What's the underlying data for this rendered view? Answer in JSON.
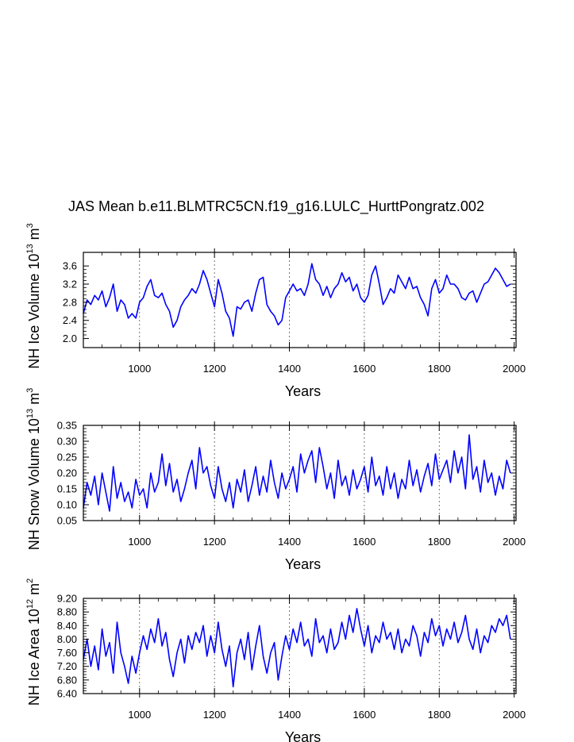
{
  "title": "JAS Mean b.e11.BLMTRC5CN.f19_g16.LULC_HurttPongratz.002",
  "colors": {
    "series": "#0000ff",
    "axis": "#000000",
    "grid": "#555555"
  },
  "chart_data": [
    {
      "id": "ice-volume",
      "type": "line",
      "title": "",
      "xlabel": "Years",
      "ylabel": {
        "main": "NH Ice Volume 10",
        "exp": "13",
        "unit": " m",
        "unit_exp": "3"
      },
      "xlim": [
        850,
        2005
      ],
      "ylim": [
        1.8,
        3.9
      ],
      "xticks": [
        1000,
        1200,
        1400,
        1600,
        1800,
        2000
      ],
      "yticks": [
        2.0,
        2.4,
        2.8,
        3.2,
        3.6
      ],
      "ytick_labels": [
        "2.0",
        "2.4",
        "2.8",
        "3.2",
        "3.6"
      ],
      "vgrid": [
        1000,
        1200,
        1400,
        1600,
        1800
      ],
      "series": [
        {
          "name": "NH Ice Volume",
          "x_start": 850,
          "x_step": 10,
          "values": [
            2.55,
            2.85,
            2.75,
            2.95,
            2.85,
            3.05,
            2.7,
            2.9,
            3.2,
            2.6,
            2.85,
            2.75,
            2.45,
            2.55,
            2.45,
            2.8,
            2.9,
            3.15,
            3.3,
            2.95,
            2.9,
            3.0,
            2.75,
            2.6,
            2.25,
            2.4,
            2.7,
            2.85,
            2.95,
            3.1,
            3.0,
            3.2,
            3.5,
            3.3,
            3.0,
            2.7,
            3.3,
            3.0,
            2.6,
            2.45,
            2.05,
            2.7,
            2.65,
            2.8,
            2.85,
            2.6,
            3.0,
            3.3,
            3.35,
            2.75,
            2.6,
            2.5,
            2.3,
            2.4,
            2.9,
            3.05,
            3.2,
            3.05,
            3.1,
            2.95,
            3.2,
            3.65,
            3.3,
            3.2,
            2.95,
            3.15,
            2.9,
            3.1,
            3.2,
            3.45,
            3.25,
            3.35,
            3.05,
            3.2,
            2.9,
            2.8,
            2.95,
            3.4,
            3.6,
            3.2,
            2.75,
            2.9,
            3.1,
            3.0,
            3.4,
            3.25,
            3.1,
            3.35,
            3.1,
            3.15,
            2.9,
            2.75,
            2.5,
            3.1,
            3.3,
            3.0,
            3.1,
            3.4,
            3.2,
            3.2,
            3.1,
            2.9,
            2.85,
            3.0,
            3.05,
            2.8,
            3.0,
            3.2,
            3.25,
            3.4,
            3.55,
            3.45,
            3.3,
            3.15,
            3.2
          ]
        }
      ]
    },
    {
      "id": "snow-volume",
      "type": "line",
      "title": "",
      "xlabel": "Years",
      "ylabel": {
        "main": "NH Snow Volume 10",
        "exp": "13",
        "unit": " m",
        "unit_exp": "3"
      },
      "xlim": [
        850,
        2005
      ],
      "ylim": [
        0.05,
        0.35
      ],
      "xticks": [
        1000,
        1200,
        1400,
        1600,
        1800,
        2000
      ],
      "yticks": [
        0.05,
        0.1,
        0.15,
        0.2,
        0.25,
        0.3,
        0.35
      ],
      "ytick_labels": [
        "0.05",
        "0.10",
        "0.15",
        "0.20",
        "0.25",
        "0.30",
        "0.35"
      ],
      "vgrid": [
        1000,
        1200,
        1400,
        1600,
        1800
      ],
      "series": [
        {
          "name": "NH Snow Volume",
          "x_start": 850,
          "x_step": 10,
          "values": [
            0.09,
            0.17,
            0.13,
            0.19,
            0.1,
            0.2,
            0.14,
            0.08,
            0.22,
            0.12,
            0.17,
            0.11,
            0.14,
            0.09,
            0.18,
            0.13,
            0.15,
            0.09,
            0.2,
            0.14,
            0.17,
            0.26,
            0.16,
            0.23,
            0.14,
            0.18,
            0.11,
            0.15,
            0.2,
            0.24,
            0.15,
            0.28,
            0.2,
            0.22,
            0.16,
            0.12,
            0.22,
            0.15,
            0.11,
            0.17,
            0.09,
            0.18,
            0.14,
            0.21,
            0.11,
            0.16,
            0.22,
            0.13,
            0.19,
            0.14,
            0.24,
            0.17,
            0.12,
            0.2,
            0.15,
            0.18,
            0.22,
            0.14,
            0.26,
            0.2,
            0.24,
            0.27,
            0.17,
            0.28,
            0.22,
            0.15,
            0.2,
            0.12,
            0.24,
            0.16,
            0.19,
            0.13,
            0.21,
            0.15,
            0.18,
            0.22,
            0.14,
            0.25,
            0.16,
            0.19,
            0.13,
            0.22,
            0.15,
            0.2,
            0.12,
            0.18,
            0.15,
            0.24,
            0.16,
            0.21,
            0.14,
            0.19,
            0.23,
            0.16,
            0.26,
            0.18,
            0.21,
            0.24,
            0.17,
            0.27,
            0.2,
            0.25,
            0.15,
            0.32,
            0.18,
            0.22,
            0.14,
            0.24,
            0.17,
            0.2,
            0.13,
            0.19,
            0.15,
            0.24,
            0.2
          ]
        }
      ]
    },
    {
      "id": "ice-area",
      "type": "line",
      "title": "",
      "xlabel": "Years",
      "ylabel": {
        "main": "NH Ice Area 10",
        "exp": "12",
        "unit": " m",
        "unit_exp": "2"
      },
      "xlim": [
        850,
        2005
      ],
      "ylim": [
        6.4,
        9.2
      ],
      "xticks": [
        1000,
        1200,
        1400,
        1600,
        1800,
        2000
      ],
      "yticks": [
        6.4,
        6.8,
        7.2,
        7.6,
        8.0,
        8.4,
        8.8,
        9.2
      ],
      "ytick_labels": [
        "6.40",
        "6.80",
        "7.20",
        "7.60",
        "8.00",
        "8.40",
        "8.80",
        "9.20"
      ],
      "vgrid": [
        1000,
        1200,
        1400,
        1600,
        1800
      ],
      "series": [
        {
          "name": "NH Ice Area",
          "x_start": 850,
          "x_step": 10,
          "values": [
            7.4,
            8.0,
            7.2,
            7.8,
            7.1,
            8.3,
            7.5,
            7.9,
            7.0,
            8.5,
            7.6,
            7.2,
            6.7,
            7.5,
            7.0,
            7.6,
            8.1,
            7.7,
            8.3,
            7.9,
            8.6,
            7.8,
            8.2,
            7.4,
            6.9,
            7.6,
            8.0,
            7.3,
            8.1,
            7.7,
            8.2,
            7.9,
            8.4,
            7.5,
            8.1,
            7.6,
            8.5,
            7.7,
            7.2,
            7.8,
            6.6,
            7.6,
            8.0,
            7.4,
            8.2,
            7.1,
            7.8,
            8.4,
            7.5,
            7.0,
            7.6,
            7.9,
            6.8,
            7.5,
            8.1,
            7.7,
            8.3,
            7.9,
            8.5,
            7.8,
            8.0,
            7.5,
            8.6,
            7.9,
            8.1,
            7.6,
            8.3,
            7.7,
            7.9,
            8.5,
            8.0,
            8.7,
            8.2,
            8.9,
            8.3,
            7.8,
            8.4,
            7.6,
            8.1,
            7.9,
            8.5,
            8.0,
            8.2,
            7.7,
            8.3,
            7.6,
            8.0,
            7.8,
            8.4,
            8.1,
            7.5,
            8.2,
            7.9,
            8.6,
            8.1,
            8.4,
            7.8,
            8.3,
            8.0,
            8.5,
            7.9,
            8.2,
            8.7,
            8.0,
            7.7,
            8.3,
            7.6,
            8.1,
            7.9,
            8.4,
            8.2,
            8.6,
            8.4,
            8.7,
            8.0
          ]
        }
      ]
    }
  ]
}
